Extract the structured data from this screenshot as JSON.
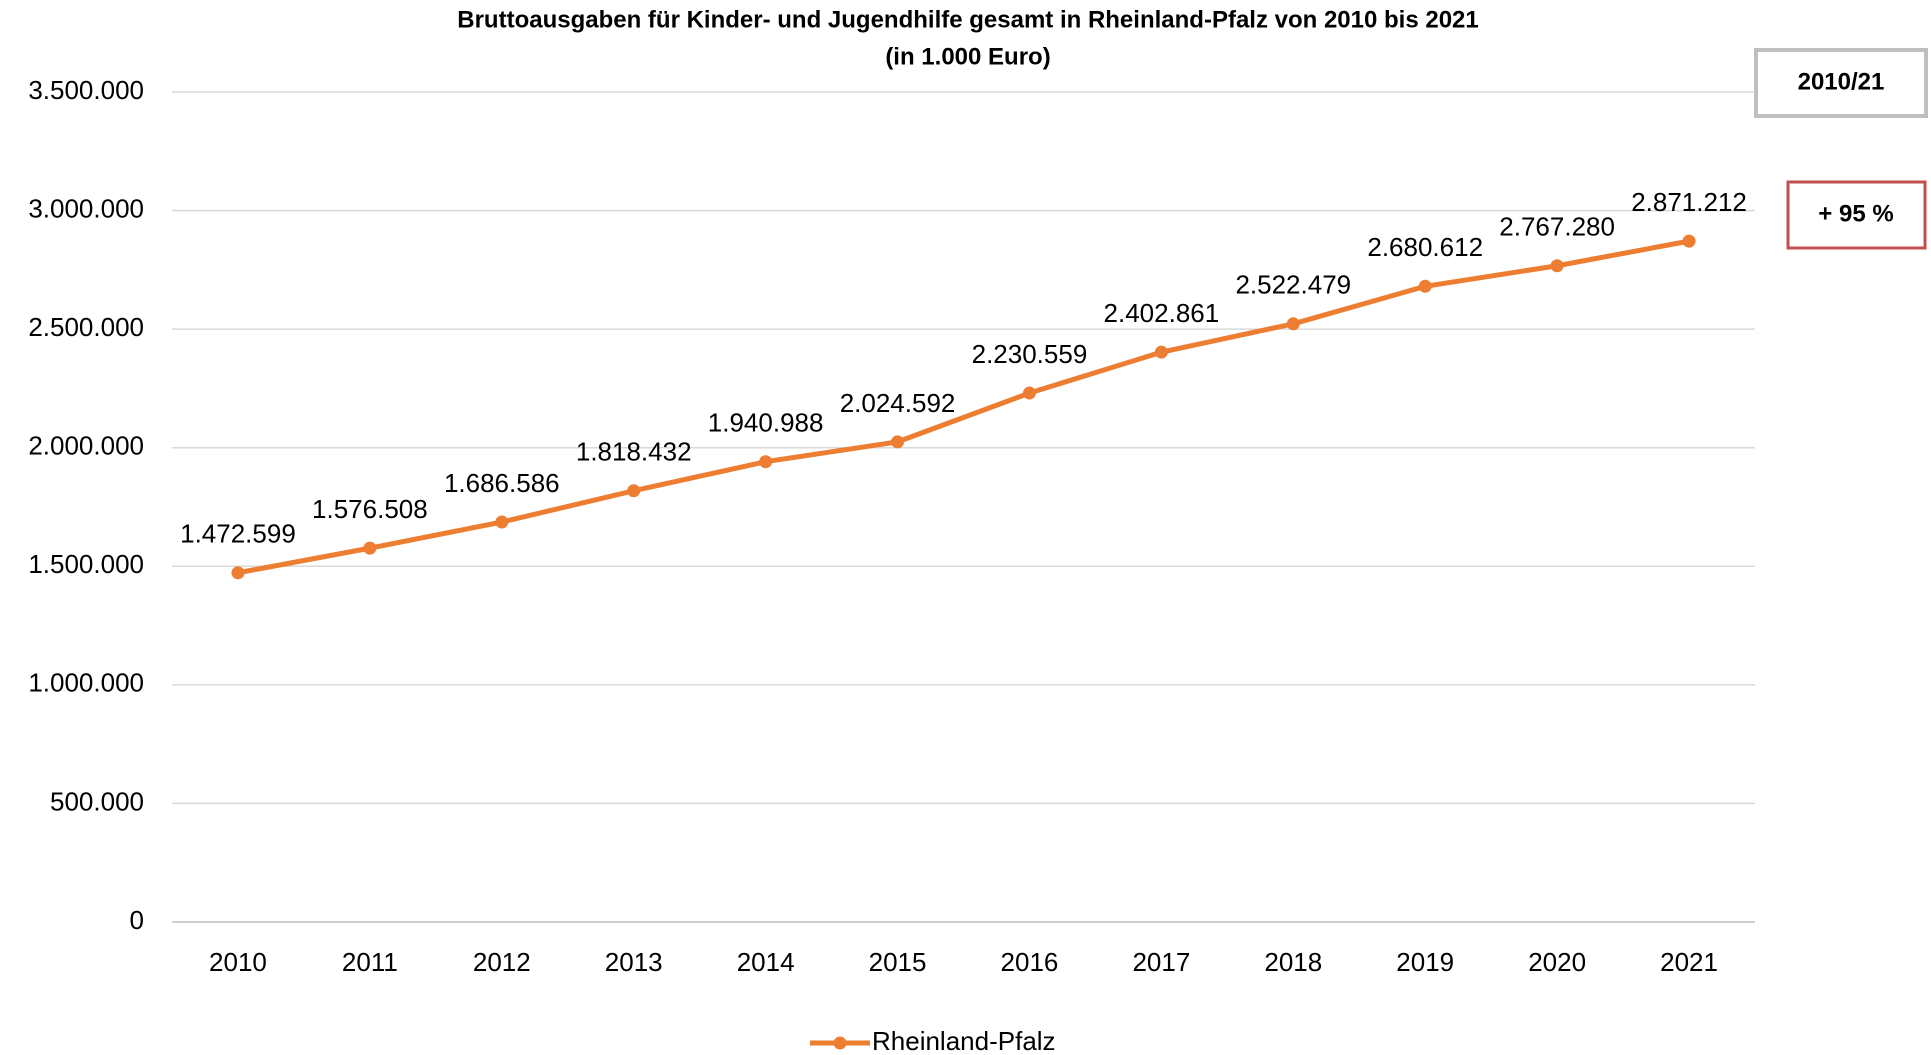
{
  "chart_data": {
    "type": "line",
    "title": "Bruttoausgaben für Kinder- und Jugendhilfe gesamt in Rheinland-Pfalz von 2010 bis 2021",
    "subtitle": "(in 1.000 Euro)",
    "categories": [
      "2010",
      "2011",
      "2012",
      "2013",
      "2014",
      "2015",
      "2016",
      "2017",
      "2018",
      "2019",
      "2020",
      "2021"
    ],
    "series": [
      {
        "name": "Rheinland-Pfalz",
        "color": "#ed7d31",
        "values": [
          1472599,
          1576508,
          1686586,
          1818432,
          1940988,
          2024592,
          2230559,
          2402861,
          2522479,
          2680612,
          2767280,
          2871212
        ],
        "value_labels": [
          "1.472.599",
          "1.576.508",
          "1.686.586",
          "1.818.432",
          "1.940.988",
          "2.024.592",
          "2.230.559",
          "2.402.861",
          "2.522.479",
          "2.680.612",
          "2.767.280",
          "2.871.212"
        ]
      }
    ],
    "ylim": [
      0,
      3500000
    ],
    "yticks": [
      0,
      {
        "value": 500000,
        "label": "500.000"
      },
      {
        "value": 1000000,
        "label": "1.000.000"
      },
      {
        "value": 1500000,
        "label": "1.500.000"
      },
      {
        "value": 2000000,
        "label": "2.000.000"
      },
      {
        "value": 2500000,
        "label": "2.500.000"
      },
      {
        "value": 3000000,
        "label": "3.000.000"
      },
      {
        "value": 3500000,
        "label": "3.500.000"
      }
    ],
    "grid": true,
    "legend": "bottom",
    "annotations": [
      "2010/21",
      "+ 95 %"
    ]
  }
}
